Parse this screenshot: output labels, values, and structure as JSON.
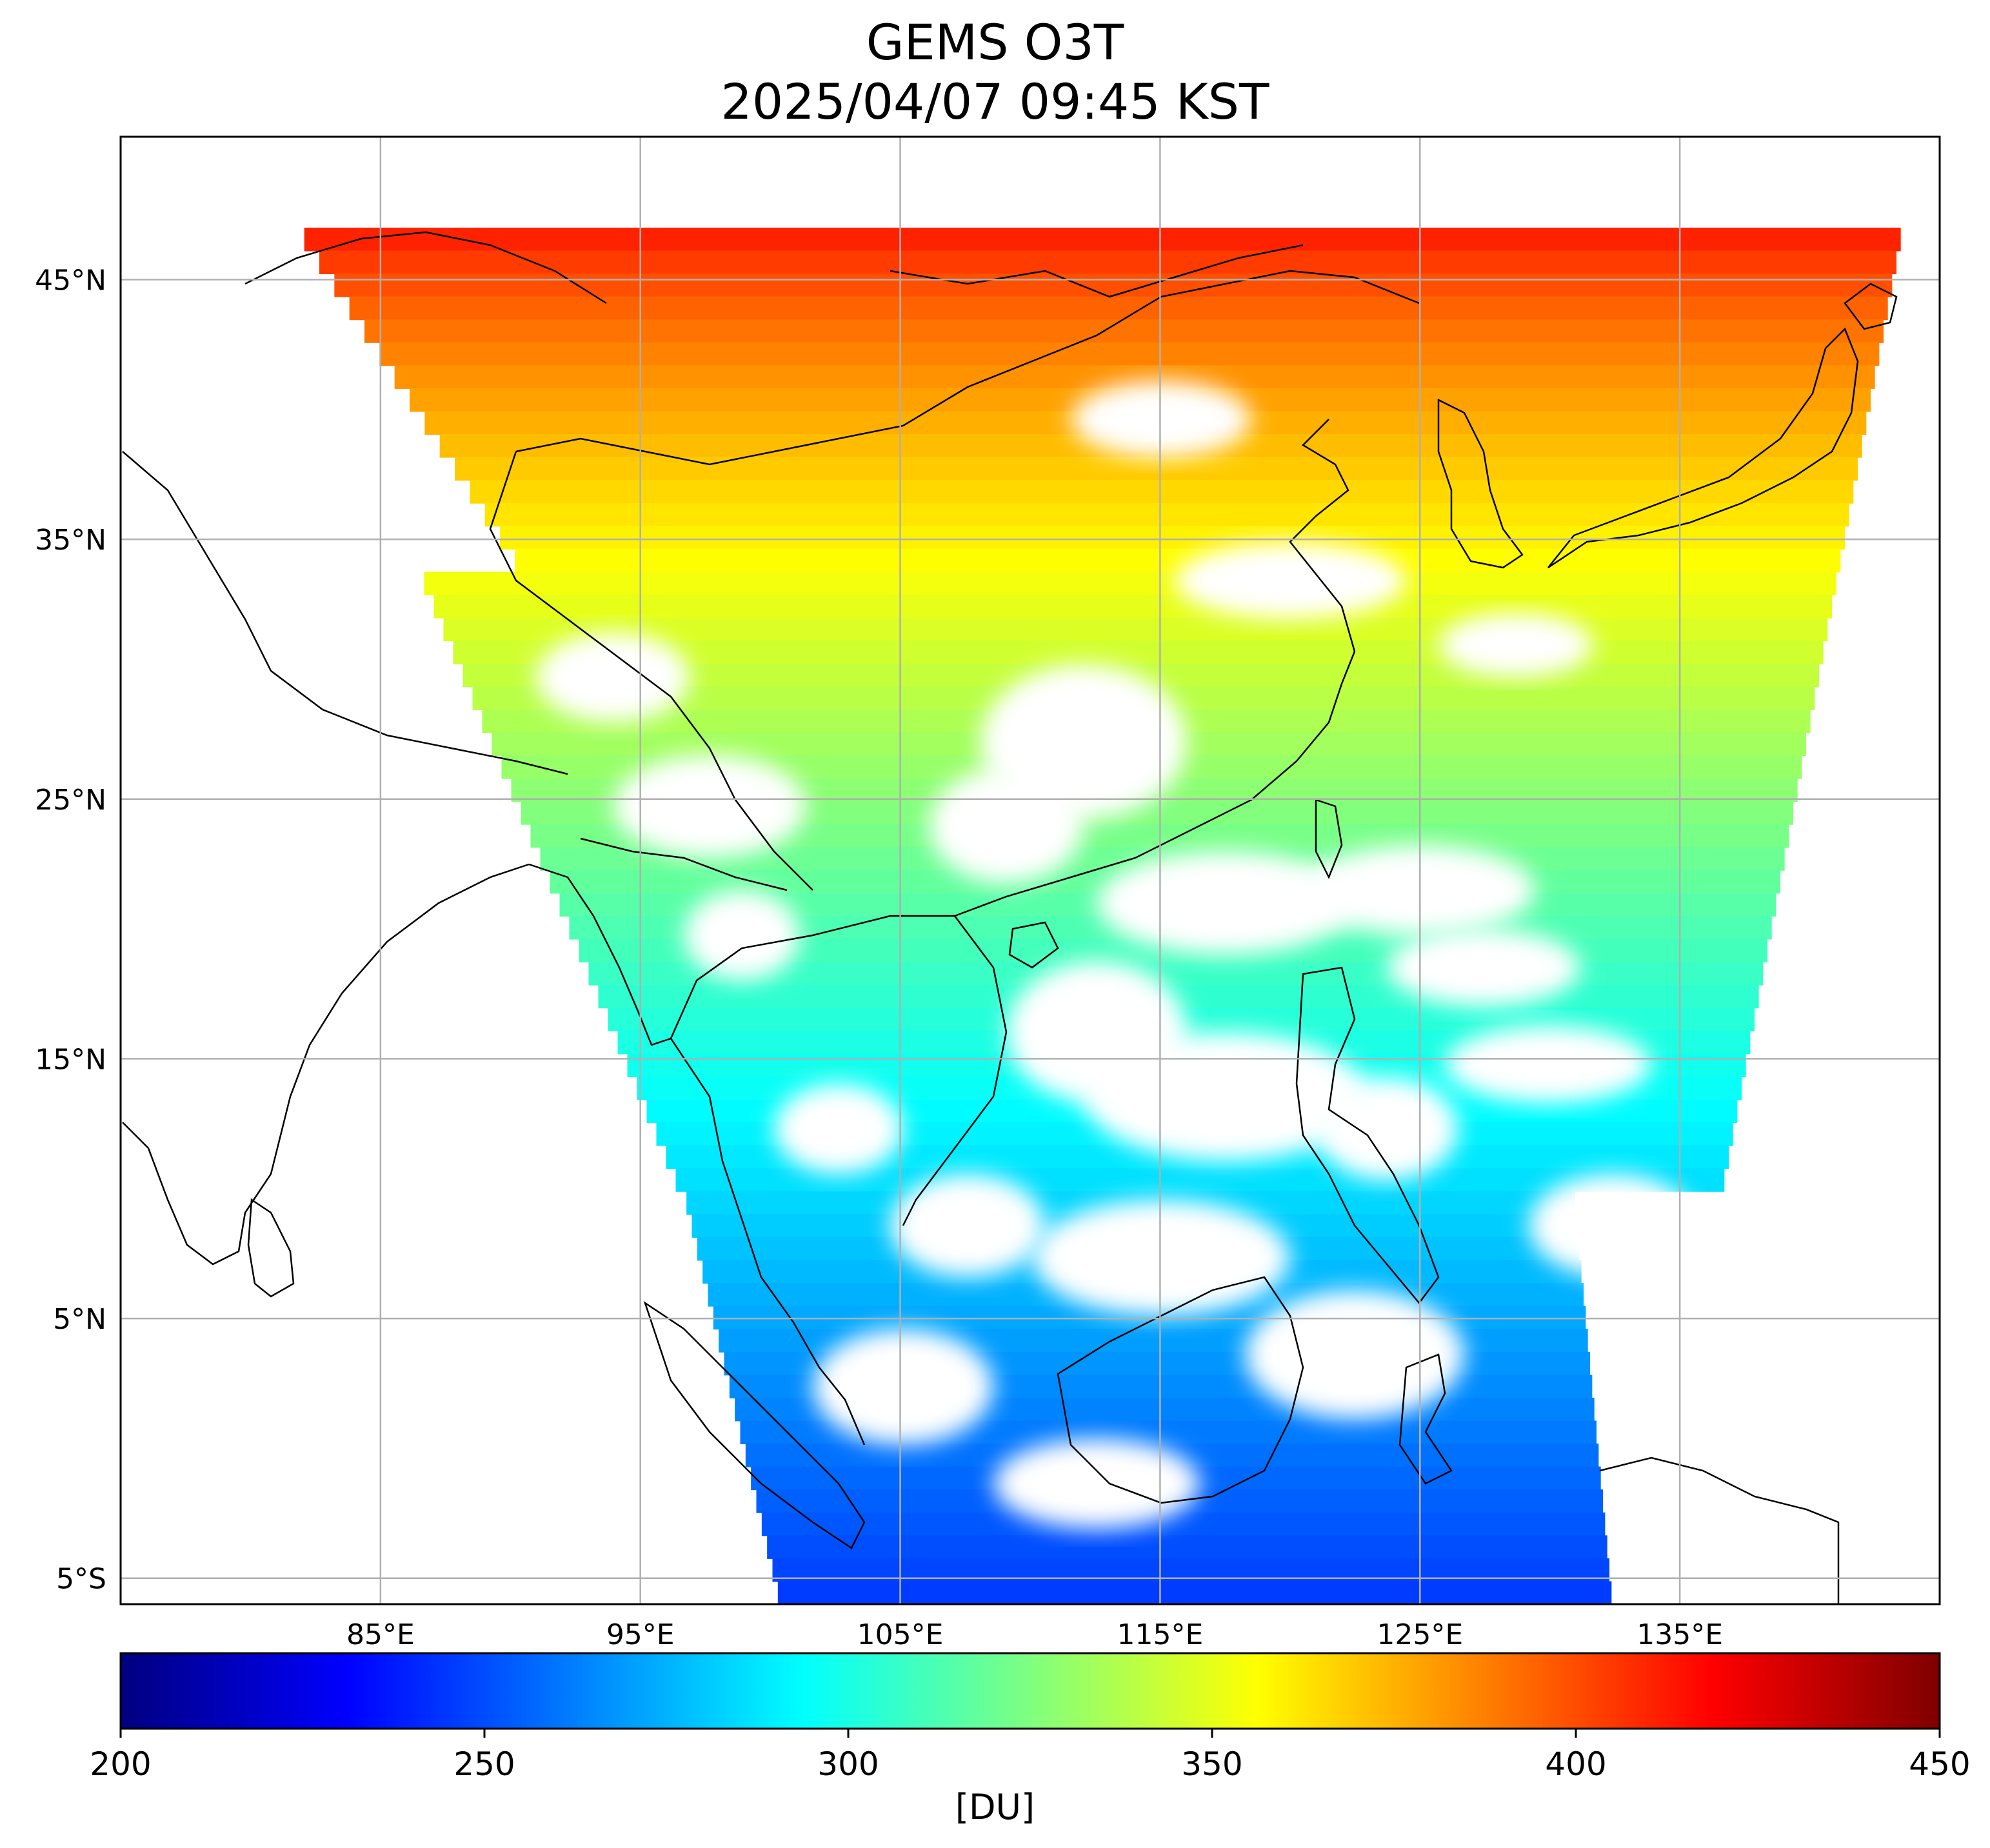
{
  "title": {
    "line1": "GEMS O3T",
    "line2": "2025/04/07 09:45 KST"
  },
  "map": {
    "lon_range": [
      75,
      145
    ],
    "lat_range": [
      -6,
      50.5
    ],
    "x_ticks": [
      85,
      95,
      105,
      115,
      125,
      135
    ],
    "x_tick_labels": [
      "85°E",
      "95°E",
      "105°E",
      "115°E",
      "125°E",
      "135°E"
    ],
    "y_ticks": [
      45,
      35,
      25,
      15,
      5,
      -5
    ],
    "y_tick_labels": [
      "45°N",
      "35°N",
      "25°N",
      "15°N",
      "5°N",
      "5°S"
    ],
    "grid": true,
    "colormap": "jet"
  },
  "colorbar": {
    "min": 200,
    "max": 450,
    "ticks": [
      200,
      250,
      300,
      350,
      400,
      450
    ],
    "tick_labels": [
      "200",
      "250",
      "300",
      "350",
      "400",
      "450"
    ],
    "unit": "[DU]",
    "colors": [
      "#00007f",
      "#0000ff",
      "#007fff",
      "#00ffff",
      "#7fff7f",
      "#ffff00",
      "#ff7f00",
      "#ff0000",
      "#7f0000"
    ]
  }
}
